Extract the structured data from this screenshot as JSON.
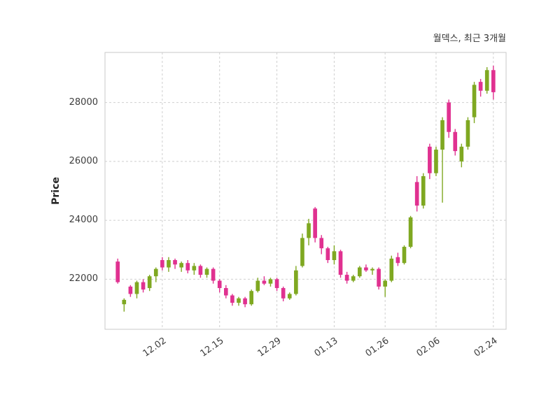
{
  "chart_data": {
    "type": "candlestick",
    "title": "월덱스, 최근 3개월",
    "ylabel": "Price",
    "xlabel": "",
    "ylim": [
      20300,
      29700
    ],
    "y_ticks": [
      22000,
      24000,
      26000,
      28000
    ],
    "x_ticks": [
      {
        "index": 7,
        "label": "12.02"
      },
      {
        "index": 16,
        "label": "12.15"
      },
      {
        "index": 25,
        "label": "12.29"
      },
      {
        "index": 34,
        "label": "01.13"
      },
      {
        "index": 42,
        "label": "01.26"
      },
      {
        "index": 50,
        "label": "02.06"
      },
      {
        "index": 59,
        "label": "02.24"
      }
    ],
    "grid": "dashed",
    "legend": "none",
    "colors": {
      "up": "#7fa821",
      "down": "#e03190",
      "grid": "#cfcfcf",
      "border": "#c9c9c9",
      "text": "#3d3d3d",
      "background": "#ffffff"
    },
    "candle_fields": [
      "open",
      "high",
      "low",
      "close"
    ],
    "candles": [
      [
        22600,
        22700,
        21850,
        21900
      ],
      [
        21150,
        21350,
        20900,
        21300
      ],
      [
        21750,
        21800,
        21400,
        21500
      ],
      [
        21500,
        21950,
        21350,
        21900
      ],
      [
        21900,
        22000,
        21550,
        21650
      ],
      [
        21700,
        22150,
        21600,
        22100
      ],
      [
        22100,
        22400,
        21900,
        22350
      ],
      [
        22650,
        22750,
        22300,
        22400
      ],
      [
        22400,
        22750,
        22250,
        22650
      ],
      [
        22650,
        22700,
        22350,
        22500
      ],
      [
        22400,
        22600,
        22250,
        22550
      ],
      [
        22550,
        22650,
        22200,
        22300
      ],
      [
        22300,
        22550,
        22150,
        22450
      ],
      [
        22450,
        22500,
        22050,
        22150
      ],
      [
        22150,
        22400,
        22050,
        22350
      ],
      [
        22350,
        22400,
        21850,
        21950
      ],
      [
        21950,
        22000,
        21550,
        21700
      ],
      [
        21700,
        21800,
        21350,
        21450
      ],
      [
        21450,
        21500,
        21100,
        21200
      ],
      [
        21200,
        21400,
        21100,
        21350
      ],
      [
        21350,
        21400,
        21050,
        21150
      ],
      [
        21150,
        21650,
        21100,
        21600
      ],
      [
        21600,
        22050,
        21550,
        21950
      ],
      [
        21950,
        22100,
        21800,
        21850
      ],
      [
        21850,
        22050,
        21750,
        22000
      ],
      [
        22000,
        22050,
        21600,
        21700
      ],
      [
        21700,
        21750,
        21250,
        21350
      ],
      [
        21350,
        21550,
        21300,
        21500
      ],
      [
        21500,
        22450,
        21450,
        22300
      ],
      [
        22450,
        23550,
        22400,
        23400
      ],
      [
        23400,
        24050,
        23150,
        23900
      ],
      [
        24400,
        24450,
        23250,
        23400
      ],
      [
        23400,
        23500,
        22850,
        23050
      ],
      [
        23050,
        23100,
        22550,
        22650
      ],
      [
        22650,
        23150,
        22500,
        22950
      ],
      [
        22950,
        23000,
        22050,
        22150
      ],
      [
        22150,
        22250,
        21850,
        21950
      ],
      [
        21950,
        22150,
        21900,
        22100
      ],
      [
        22100,
        22450,
        22050,
        22400
      ],
      [
        22400,
        22500,
        22250,
        22300
      ],
      [
        22300,
        22400,
        22150,
        22350
      ],
      [
        22350,
        22400,
        21650,
        21750
      ],
      [
        21750,
        22000,
        21400,
        21950
      ],
      [
        21950,
        22800,
        21900,
        22700
      ],
      [
        22750,
        22900,
        22450,
        22550
      ],
      [
        22550,
        23150,
        22500,
        23100
      ],
      [
        23100,
        24150,
        23050,
        24100
      ],
      [
        25300,
        25500,
        24300,
        24500
      ],
      [
        24500,
        25600,
        24400,
        25500
      ],
      [
        26500,
        26600,
        25400,
        25600
      ],
      [
        25600,
        26500,
        25500,
        26400
      ],
      [
        26400,
        27500,
        24600,
        27400
      ],
      [
        28000,
        28100,
        26800,
        27000
      ],
      [
        27000,
        27100,
        26200,
        26350
      ],
      [
        26000,
        26600,
        25800,
        26500
      ],
      [
        26500,
        27500,
        26400,
        27400
      ],
      [
        27500,
        28700,
        27300,
        28600
      ],
      [
        28700,
        28800,
        28200,
        28400
      ],
      [
        28400,
        29200,
        28300,
        29100
      ],
      [
        29100,
        29250,
        28100,
        28350
      ]
    ]
  }
}
